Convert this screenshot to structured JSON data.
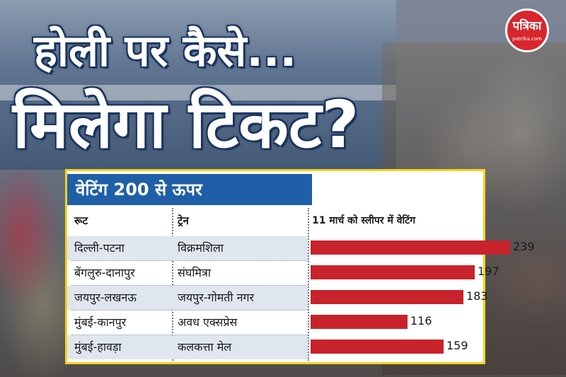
{
  "headline": {
    "line1": "होली पर कैसे...",
    "line2": "मिलेगा टिकट?"
  },
  "logo": {
    "name": "पत्रिका",
    "site": "patrika.com"
  },
  "card": {
    "title": "वेटिंग 200 से ऊपर"
  },
  "chart_data": {
    "type": "bar",
    "orientation": "horizontal",
    "columns": {
      "route": "रूट",
      "train": "ट्रेन",
      "waiting": "11 मार्च को स्लीपर में वेटिंग"
    },
    "routes": [
      "दिल्ली-पटना",
      "बेंगलुरु-दानापुर",
      "जयपुर-लखनऊ",
      "मुंबई-कानपुर",
      "मुंबई-हावड़ा"
    ],
    "trains": [
      "विक्रमशिला",
      "संघमित्रा",
      "जयपुर-गोमती नगर",
      "अवध एक्सप्रेस",
      "कलकत्ता मेल"
    ],
    "values": [
      239,
      197,
      183,
      116,
      159
    ],
    "xlim": [
      0,
      239
    ],
    "bar_color": "#c8232c"
  },
  "colors": {
    "title_bg": "#1f5fa7",
    "border": "#f5d21c",
    "headline_outline": "#1b3560",
    "logo_bg": "#d8262d"
  }
}
